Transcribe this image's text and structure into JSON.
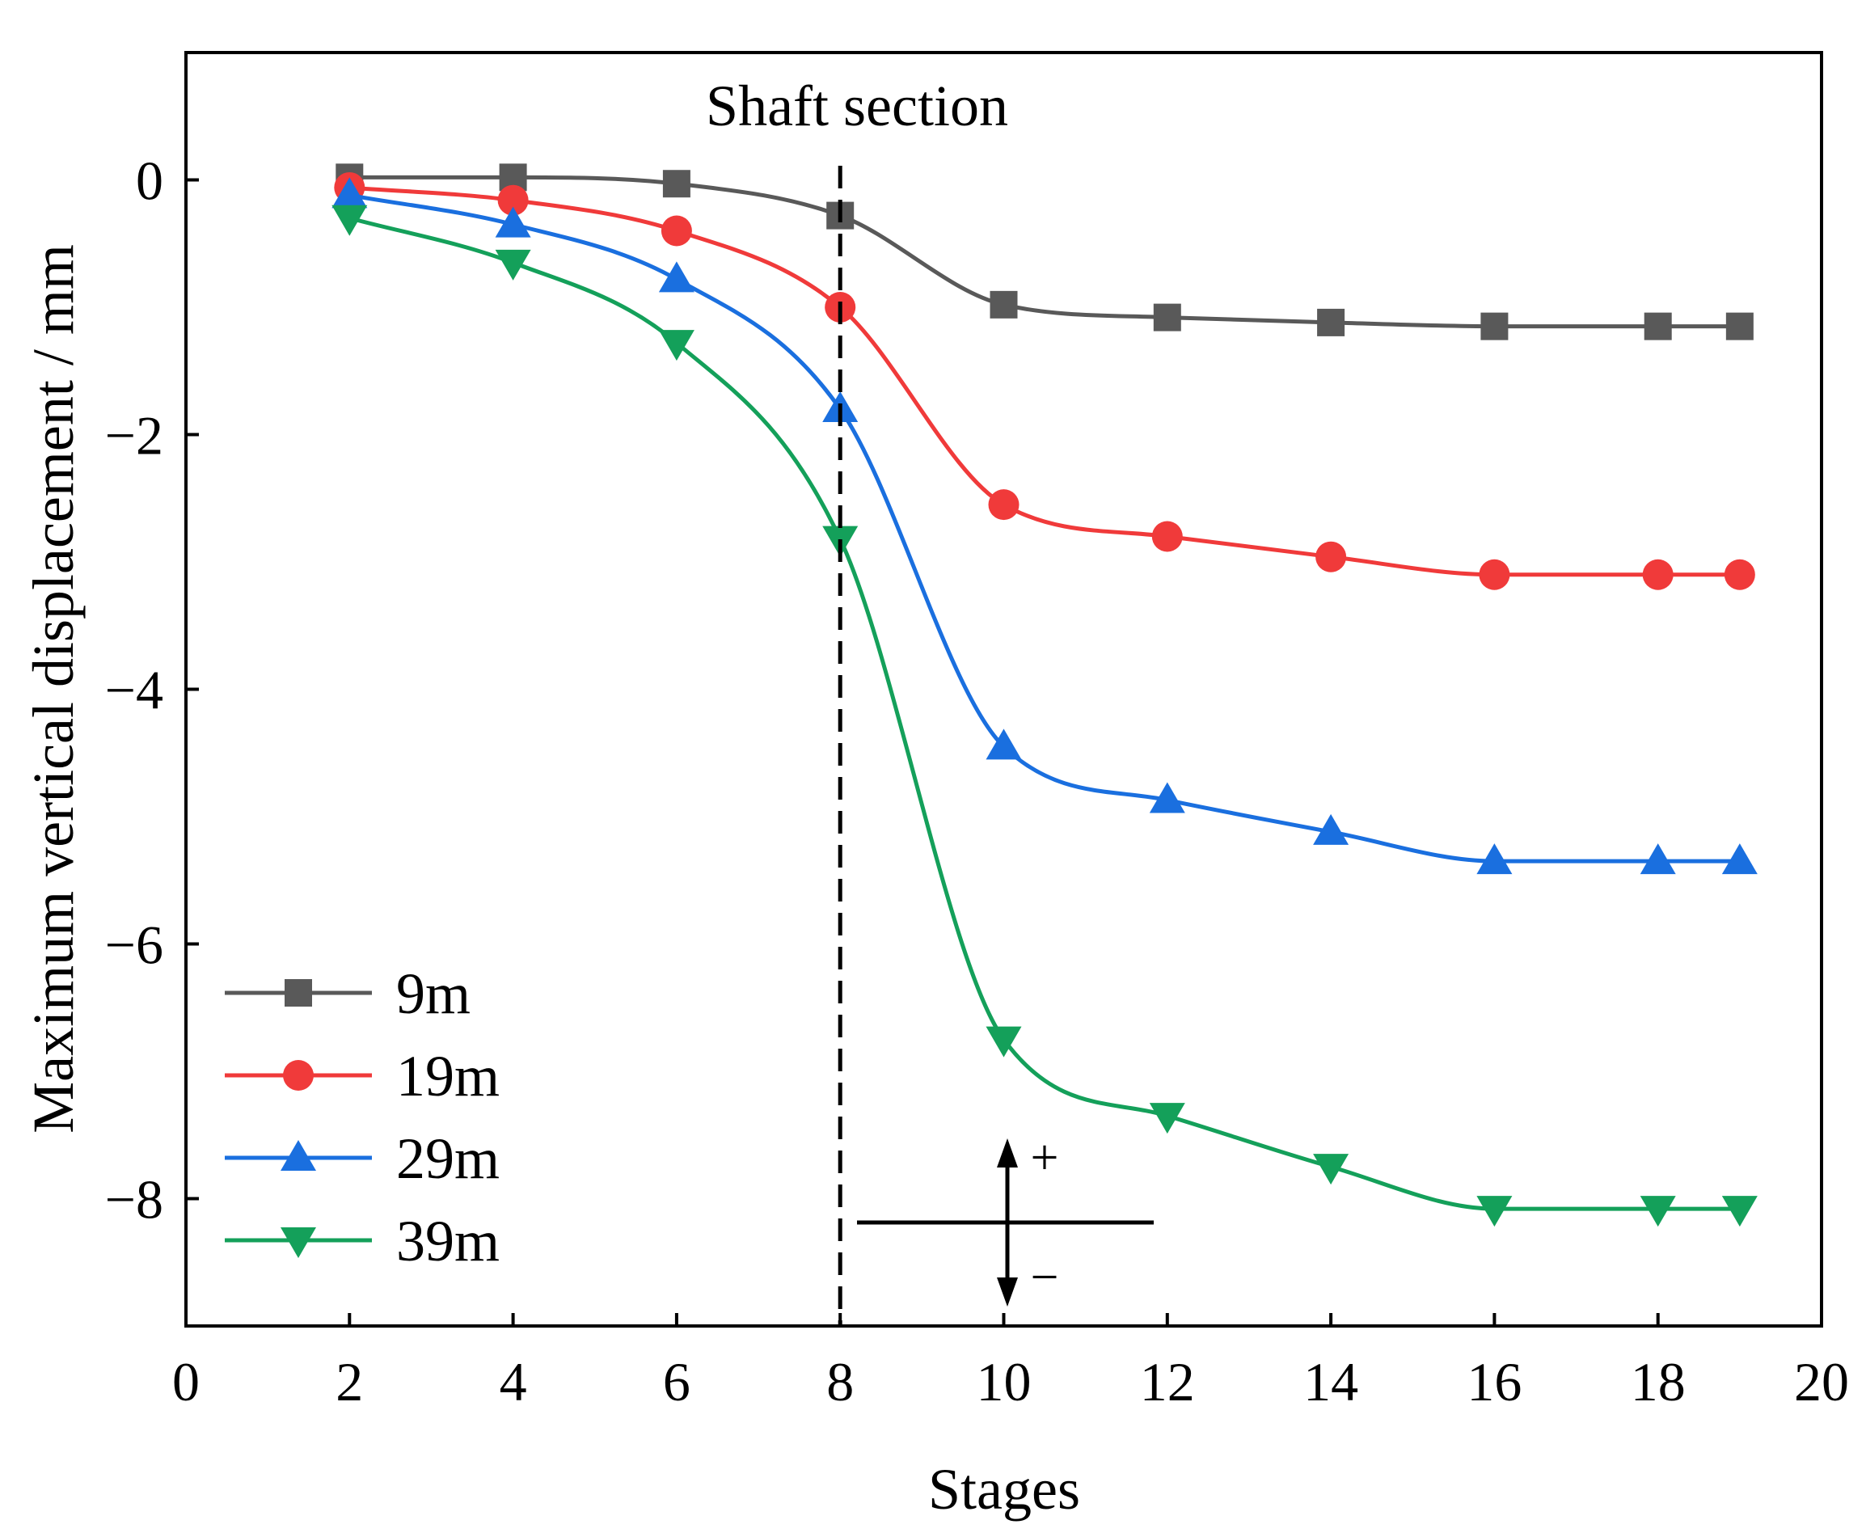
{
  "chart_data": {
    "type": "line",
    "title": "",
    "xlabel": "Stages",
    "ylabel": "Maximum vertical displacement / mm",
    "xlim": [
      0,
      20
    ],
    "ylim": [
      -9,
      1
    ],
    "xticks": [
      0,
      2,
      4,
      6,
      8,
      10,
      12,
      14,
      16,
      18,
      20
    ],
    "yticks": [
      0,
      -2,
      -4,
      -6,
      -8
    ],
    "ytick_labels": [
      "0",
      "−2",
      "−4",
      "−6",
      "−8"
    ],
    "grid": false,
    "legend_position": "bottom-left",
    "x": [
      2,
      4,
      6,
      8,
      10,
      12,
      14,
      16,
      18,
      19
    ],
    "series": [
      {
        "name": "9m",
        "color": "#595959",
        "marker": "square",
        "values": [
          0.02,
          0.02,
          -0.03,
          -0.28,
          -0.98,
          -1.08,
          -1.12,
          -1.15,
          -1.15,
          -1.15
        ]
      },
      {
        "name": "19m",
        "color": "#f03a3a",
        "marker": "circle",
        "values": [
          -0.06,
          -0.16,
          -0.4,
          -1.0,
          -2.55,
          -2.8,
          -2.96,
          -3.1,
          -3.1,
          -3.1
        ]
      },
      {
        "name": "29m",
        "color": "#1a6fdf",
        "marker": "triangle-up",
        "values": [
          -0.12,
          -0.35,
          -0.78,
          -1.8,
          -4.45,
          -4.87,
          -5.12,
          -5.35,
          -5.35,
          -5.35
        ]
      },
      {
        "name": "39m",
        "color": "#14a05a",
        "marker": "triangle-down",
        "values": [
          -0.3,
          -0.65,
          -1.28,
          -2.82,
          -6.75,
          -7.35,
          -7.75,
          -8.08,
          -8.08,
          -8.08
        ]
      }
    ],
    "annotations": {
      "shaft_label": "Shaft section",
      "shaft_stage": 8,
      "plus_sign": "+",
      "minus_sign": "−"
    }
  }
}
